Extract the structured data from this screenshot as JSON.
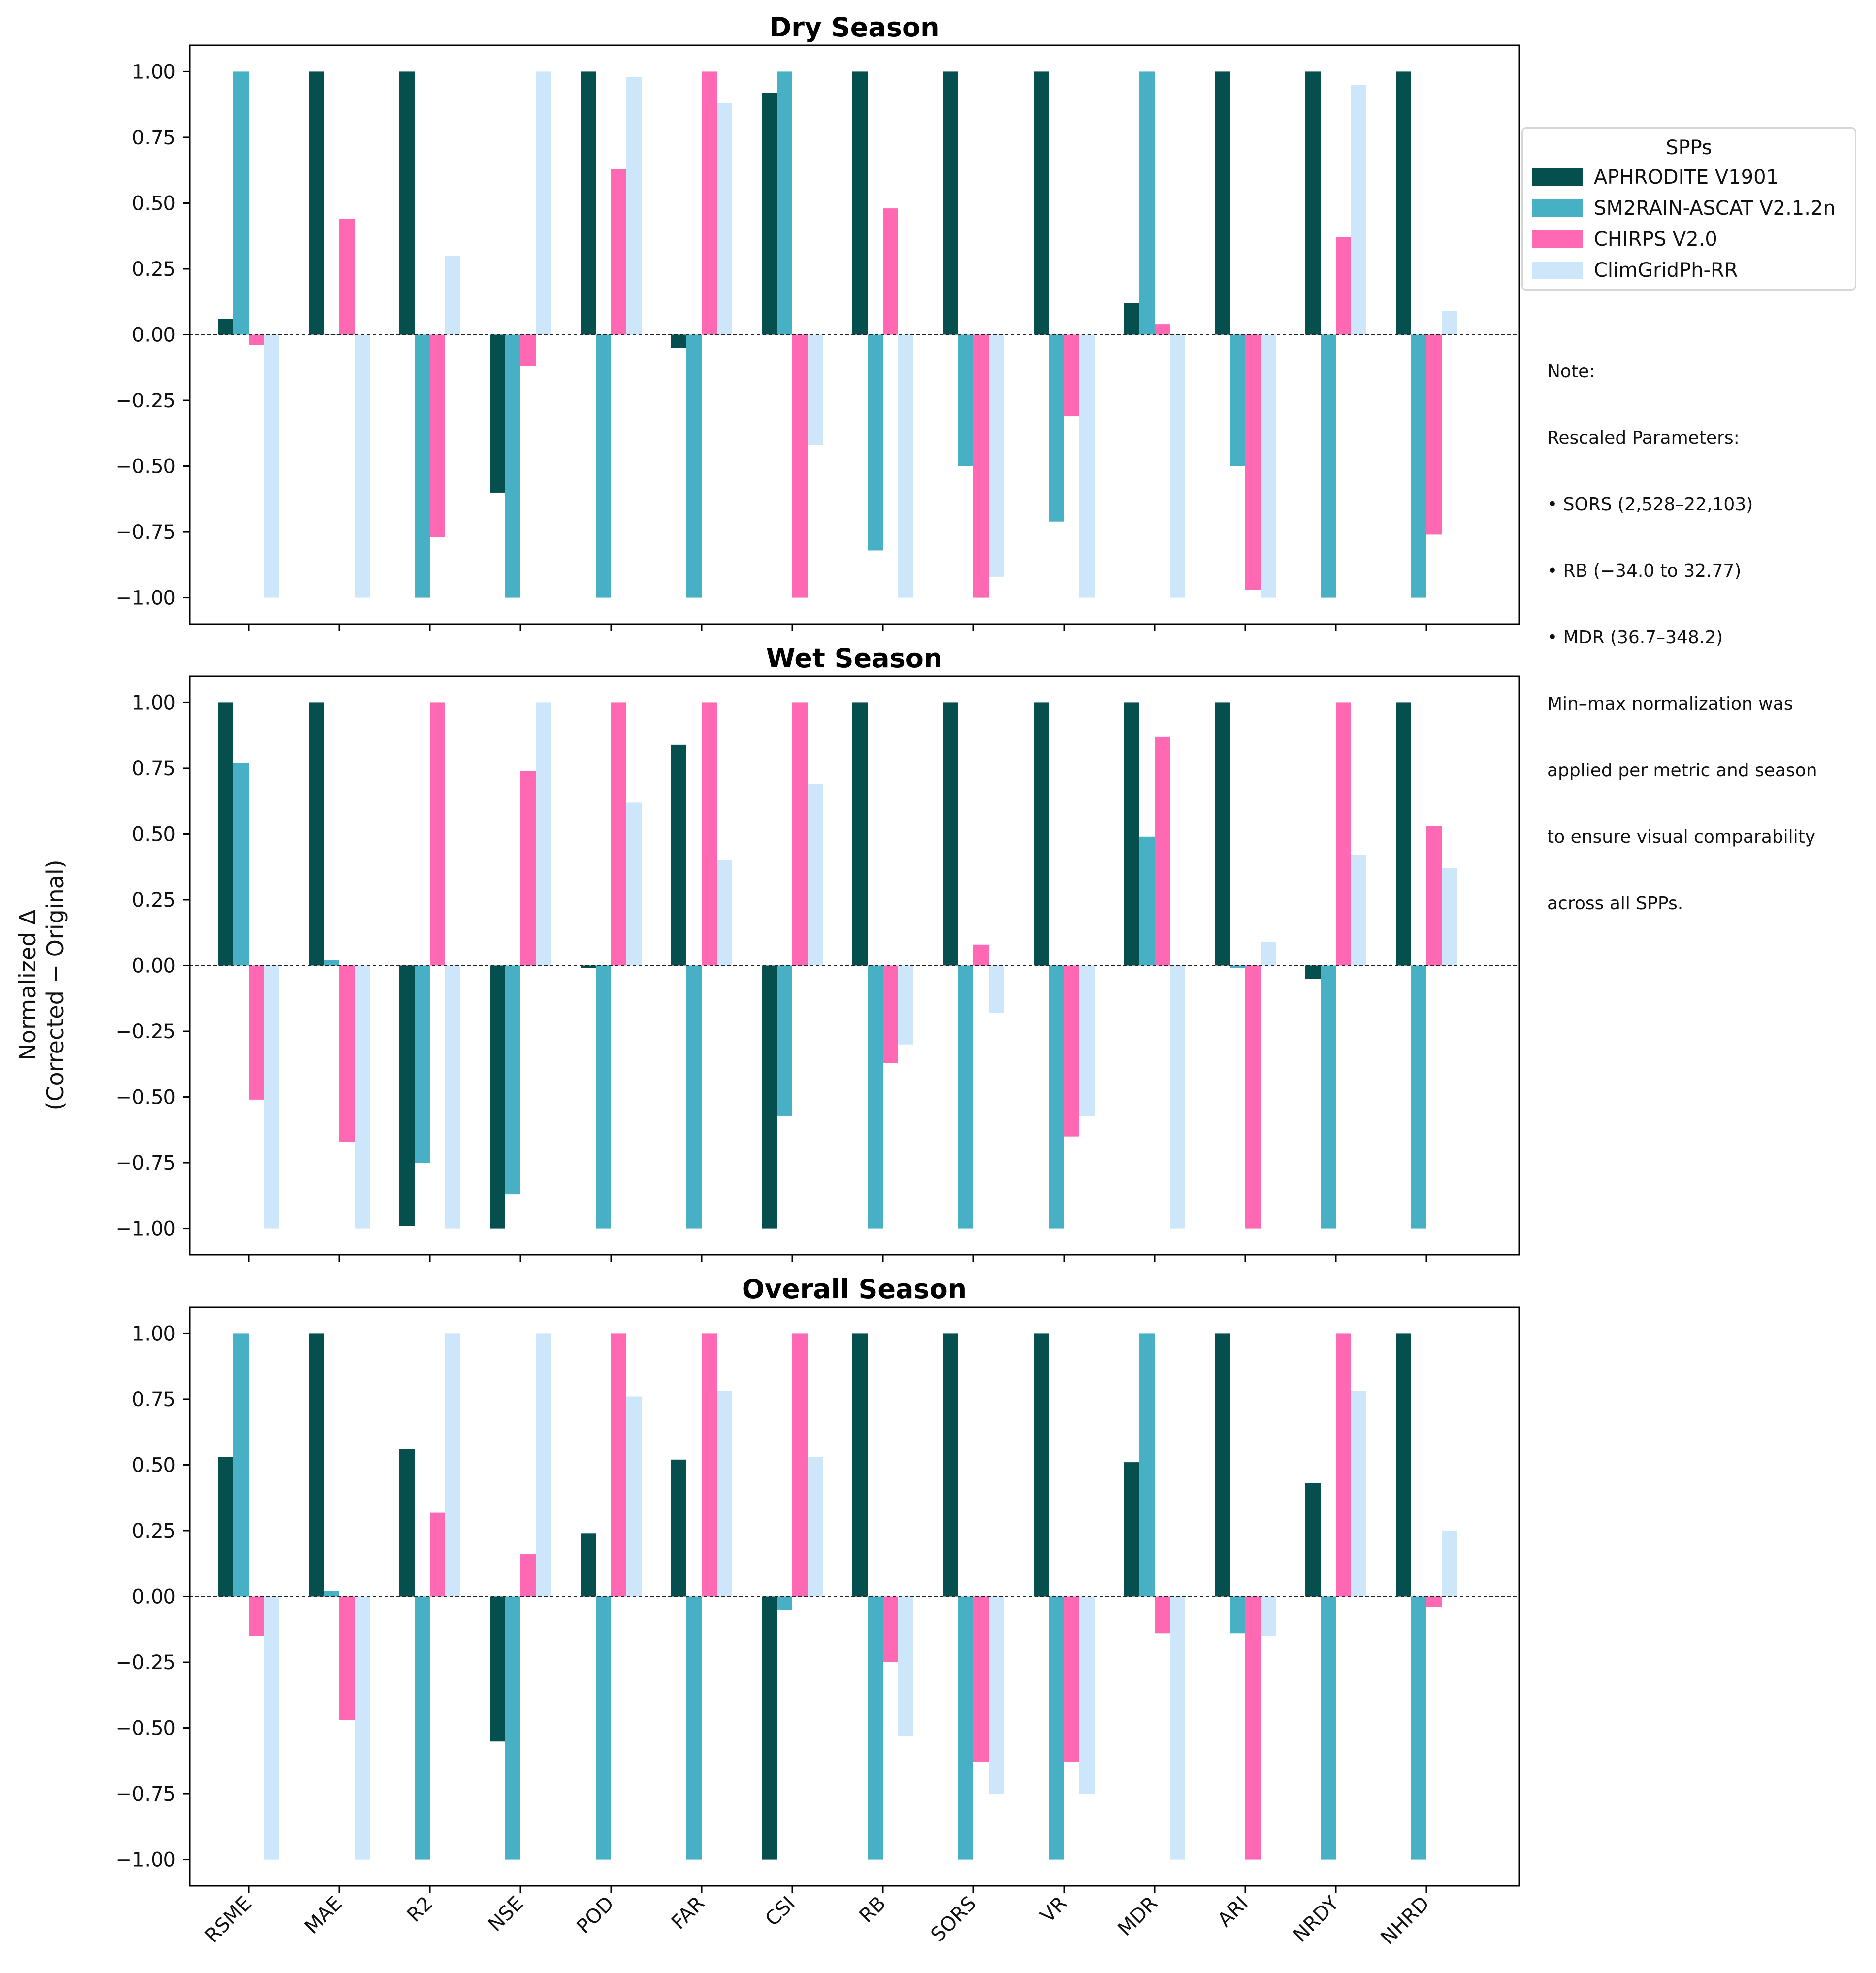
{
  "chart_data": {
    "type": "bar",
    "ylabel_line1": "Normalized Δ",
    "ylabel_line2": "(Corrected − Original)",
    "categories": [
      "RSME",
      "MAE",
      "R2",
      "NSE",
      "POD",
      "FAR",
      "CSI",
      "RB",
      "SORS",
      "VR",
      "MDR",
      "ARI",
      "NRDY",
      "NHRD"
    ],
    "ylim": [
      -1.1,
      1.1
    ],
    "yticks": [
      1.0,
      0.75,
      0.5,
      0.25,
      0.0,
      -0.25,
      -0.5,
      -0.75,
      -1.0
    ],
    "ytick_labels": [
      "1.00",
      "0.75",
      "0.50",
      "0.25",
      "0.00",
      "−0.25",
      "−0.50",
      "−0.75",
      "−1.00"
    ],
    "series_names": [
      "APHRODITE V1901",
      "SM2RAIN-ASCAT V2.1.2n",
      "CHIRPS V2.0",
      "ClimGridPh-RR"
    ],
    "series_colors": [
      "#054f4f",
      "#48b0c5",
      "#ff69b4",
      "#cde6fa"
    ],
    "panels": [
      {
        "title": "Dry Season",
        "series": [
          {
            "name": "APHRODITE V1901",
            "values": [
              0.06,
              1.0,
              1.0,
              -0.6,
              1.0,
              -0.05,
              0.92,
              1.0,
              1.0,
              1.0,
              0.12,
              1.0,
              1.0,
              1.0
            ]
          },
          {
            "name": "SM2RAIN-ASCAT V2.1.2n",
            "values": [
              1.0,
              0.0,
              -1.0,
              -1.0,
              -1.0,
              -1.0,
              1.0,
              -0.82,
              -0.5,
              -0.71,
              1.0,
              -0.5,
              -1.0,
              -1.0
            ]
          },
          {
            "name": "CHIRPS V2.0",
            "values": [
              -0.04,
              0.44,
              -0.77,
              -0.12,
              0.63,
              1.0,
              -1.0,
              0.48,
              -1.0,
              -0.31,
              0.04,
              -0.97,
              0.37,
              -0.76
            ]
          },
          {
            "name": "ClimGridPh-RR",
            "values": [
              -1.0,
              -1.0,
              0.3,
              1.0,
              0.98,
              0.88,
              -0.42,
              -1.0,
              -0.92,
              -1.0,
              -1.0,
              -1.0,
              0.95,
              0.09
            ]
          }
        ]
      },
      {
        "title": "Wet Season",
        "series": [
          {
            "name": "APHRODITE V1901",
            "values": [
              1.0,
              1.0,
              -0.99,
              -1.0,
              -0.01,
              0.84,
              -1.0,
              1.0,
              1.0,
              1.0,
              1.0,
              1.0,
              -0.05,
              1.0
            ]
          },
          {
            "name": "SM2RAIN-ASCAT V2.1.2n",
            "values": [
              0.77,
              0.02,
              -0.75,
              -0.87,
              -1.0,
              -1.0,
              -0.57,
              -1.0,
              -1.0,
              -1.0,
              0.49,
              -0.01,
              -1.0,
              -1.0
            ]
          },
          {
            "name": "CHIRPS V2.0",
            "values": [
              -0.51,
              -0.67,
              1.0,
              0.74,
              1.0,
              1.0,
              1.0,
              -0.37,
              0.08,
              -0.65,
              0.87,
              -1.0,
              1.0,
              0.53
            ]
          },
          {
            "name": "ClimGridPh-RR",
            "values": [
              -1.0,
              -1.0,
              -1.0,
              1.0,
              0.62,
              0.4,
              0.69,
              -0.3,
              -0.18,
              -0.57,
              -1.0,
              0.09,
              0.42,
              0.37
            ]
          }
        ]
      },
      {
        "title": "Overall Season",
        "series": [
          {
            "name": "APHRODITE V1901",
            "values": [
              0.53,
              1.0,
              0.56,
              -0.55,
              0.24,
              0.52,
              -1.0,
              1.0,
              1.0,
              1.0,
              0.51,
              1.0,
              0.43,
              1.0
            ]
          },
          {
            "name": "SM2RAIN-ASCAT V2.1.2n",
            "values": [
              1.0,
              0.02,
              -1.0,
              -1.0,
              -1.0,
              -1.0,
              -0.05,
              -1.0,
              -1.0,
              -1.0,
              1.0,
              -0.14,
              -1.0,
              -1.0
            ]
          },
          {
            "name": "CHIRPS V2.0",
            "values": [
              -0.15,
              -0.47,
              0.32,
              0.16,
              1.0,
              1.0,
              1.0,
              -0.25,
              -0.63,
              -0.63,
              -0.14,
              -1.0,
              1.0,
              -0.04
            ]
          },
          {
            "name": "ClimGridPh-RR",
            "values": [
              -1.0,
              -1.0,
              1.0,
              1.0,
              0.76,
              0.78,
              0.53,
              -0.53,
              -0.75,
              -0.75,
              -1.0,
              -0.15,
              0.78,
              0.25
            ]
          }
        ]
      }
    ],
    "legend": {
      "title": "SPPs",
      "position": "right"
    }
  },
  "note": {
    "lines": [
      "Note:",
      "Rescaled Parameters:",
      "• SORS (2,528–22,103)",
      "• RB (−34.0 to 32.77)",
      "• MDR (36.7–348.2)",
      "Min–max normalization was",
      "applied per metric and season",
      "to ensure visual comparability",
      "across all SPPs."
    ]
  }
}
